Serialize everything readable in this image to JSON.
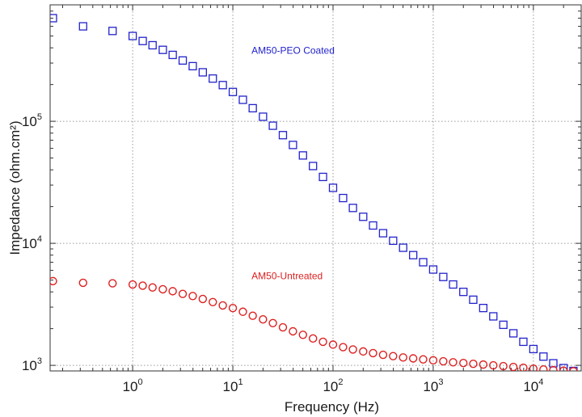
{
  "chart_data": {
    "type": "scatter",
    "x_scale": "log",
    "y_scale": "log",
    "xlabel": "Frequency (Hz)",
    "ylabel": "Impedance (ohm.cm²)",
    "xlim": [
      0.15,
      30000
    ],
    "ylim": [
      900,
      900000
    ],
    "grid": true,
    "x_ticks": [
      {
        "value": 1,
        "label": "10",
        "exp": "0"
      },
      {
        "value": 10,
        "label": "10",
        "exp": "1"
      },
      {
        "value": 100,
        "label": "10",
        "exp": "2"
      },
      {
        "value": 1000,
        "label": "10",
        "exp": "3"
      },
      {
        "value": 10000,
        "label": "10",
        "exp": "4"
      }
    ],
    "y_ticks": [
      {
        "value": 1000,
        "label": "10",
        "exp": "3"
      },
      {
        "value": 10000,
        "label": "10",
        "exp": "4"
      },
      {
        "value": 100000,
        "label": "10",
        "exp": "5"
      }
    ],
    "series": [
      {
        "name": "AM50-PEO Coated",
        "marker": "square",
        "color": "#2222cc",
        "x": [
          0.16,
          0.32,
          0.63,
          1.0,
          1.26,
          1.58,
          2.0,
          2.51,
          3.16,
          3.98,
          5.01,
          6.31,
          7.94,
          10.0,
          12.6,
          15.8,
          20.0,
          25.1,
          31.6,
          39.8,
          50.1,
          63.1,
          79.4,
          100,
          126,
          158,
          200,
          251,
          316,
          398,
          501,
          631,
          794,
          1000,
          1260,
          1580,
          2000,
          2510,
          3160,
          3980,
          5010,
          6310,
          7940,
          10000,
          12600,
          15800,
          20000,
          25100
        ],
        "y": [
          700000,
          600000,
          550000,
          500000,
          455000,
          420000,
          385000,
          350000,
          315000,
          283000,
          252000,
          224000,
          198000,
          174000,
          150000,
          128000,
          109000,
          92000,
          77000,
          64000,
          52500,
          43000,
          35000,
          28500,
          23500,
          19500,
          16500,
          14000,
          12100,
          10500,
          9200,
          8000,
          7000,
          6100,
          5300,
          4600,
          4000,
          3450,
          2950,
          2520,
          2150,
          1830,
          1560,
          1360,
          1180,
          1040,
          950,
          900
        ]
      },
      {
        "name": "AM50-Untreated",
        "marker": "circle",
        "color": "#dd1f1f",
        "x": [
          0.16,
          0.32,
          0.63,
          1.0,
          1.26,
          1.58,
          2.0,
          2.51,
          3.16,
          3.98,
          5.01,
          6.31,
          7.94,
          10.0,
          12.6,
          15.8,
          20.0,
          25.1,
          31.6,
          39.8,
          50.1,
          63.1,
          79.4,
          100,
          126,
          158,
          200,
          251,
          316,
          398,
          501,
          631,
          794,
          1000,
          1260,
          1580,
          2000,
          2510,
          3160,
          3980,
          5010,
          6310,
          7940,
          10000,
          12600,
          15800,
          20000,
          25100
        ],
        "y": [
          4900,
          4750,
          4700,
          4600,
          4500,
          4350,
          4200,
          4050,
          3850,
          3700,
          3500,
          3300,
          3100,
          2950,
          2750,
          2550,
          2380,
          2220,
          2050,
          1900,
          1780,
          1660,
          1560,
          1480,
          1410,
          1350,
          1300,
          1260,
          1220,
          1190,
          1160,
          1140,
          1120,
          1100,
          1080,
          1060,
          1045,
          1030,
          1015,
          1000,
          985,
          970,
          955,
          940,
          925,
          915,
          905,
          895
        ]
      }
    ],
    "annotations": [
      {
        "text": "AM50-PEO Coated",
        "x": 30,
        "y": 380000,
        "color": "#2222cc"
      },
      {
        "text": "AM50-Untreated",
        "x": 30,
        "y": 5400,
        "color": "#dd1f1f"
      }
    ]
  }
}
